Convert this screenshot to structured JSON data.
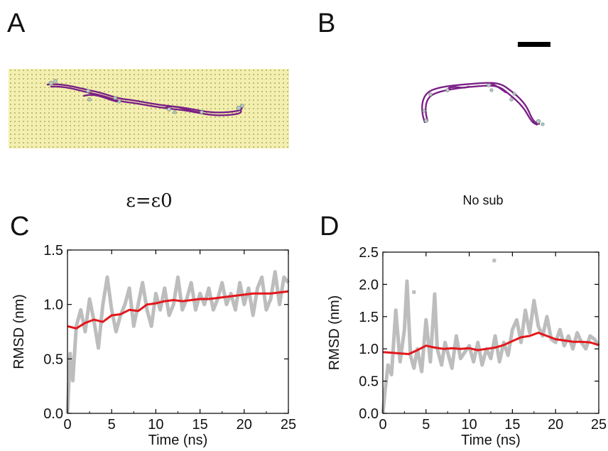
{
  "panels": {
    "a": {
      "letter": "A",
      "caption": "ε=ε0"
    },
    "b": {
      "letter": "B",
      "caption": "No sub"
    },
    "c": {
      "letter": "C"
    },
    "d": {
      "letter": "D"
    }
  },
  "colors": {
    "raw": "#bdbdbd",
    "smooth": "#e3171b",
    "substrate_bg": "#f3efb0",
    "substrate_dot": "#9c9a40",
    "chain": "#7a1f86",
    "chain_end": "#b9c9c4",
    "scalebar": "#000000"
  },
  "chart_data": [
    {
      "panel": "C",
      "type": "line",
      "xlabel": "Time (ns)",
      "ylabel": "RMSD (nm)",
      "xlim": [
        0,
        25
      ],
      "ylim": [
        0,
        1.5
      ],
      "xticks": [
        0,
        5,
        10,
        15,
        20,
        25
      ],
      "yticks": [
        0.0,
        0.5,
        1.0,
        1.5
      ],
      "ytick_labels": [
        "0.0",
        "0.5",
        "1.0",
        "1.5"
      ],
      "series": [
        {
          "role": "raw",
          "x": [
            0.0,
            0.3,
            0.6,
            1.0,
            1.5,
            2.0,
            2.5,
            3.0,
            3.5,
            4.0,
            4.5,
            5.0,
            5.5,
            6.0,
            6.5,
            7.0,
            7.5,
            8.0,
            8.5,
            9.0,
            9.5,
            10.0,
            10.5,
            11.0,
            11.5,
            12.0,
            12.5,
            13.0,
            13.5,
            14.0,
            14.5,
            15.0,
            15.5,
            16.0,
            16.5,
            17.0,
            17.5,
            18.0,
            18.5,
            19.0,
            19.5,
            20.0,
            20.5,
            21.0,
            21.5,
            22.0,
            22.5,
            23.0,
            23.5,
            24.0,
            24.5,
            25.0
          ],
          "y": [
            0.0,
            0.55,
            0.3,
            0.8,
            0.95,
            0.75,
            1.05,
            0.85,
            0.6,
            1.0,
            1.25,
            0.95,
            0.75,
            0.9,
            1.0,
            1.15,
            0.8,
            1.0,
            1.2,
            0.95,
            0.8,
            1.1,
            0.95,
            1.15,
            0.9,
            1.0,
            1.25,
            0.95,
            1.05,
            1.2,
            0.95,
            1.1,
            1.0,
            1.15,
            0.95,
            1.05,
            1.2,
            1.0,
            1.1,
            0.95,
            1.2,
            1.0,
            1.15,
            0.9,
            1.15,
            1.25,
            0.95,
            1.05,
            1.3,
            1.0,
            1.25,
            1.2
          ]
        },
        {
          "role": "smoothed",
          "x": [
            0,
            1,
            2,
            3,
            4,
            5,
            6,
            7,
            8,
            9,
            10,
            11,
            12,
            13,
            14,
            15,
            16,
            17,
            18,
            19,
            20,
            21,
            22,
            23,
            24,
            25
          ],
          "y": [
            0.8,
            0.78,
            0.83,
            0.86,
            0.84,
            0.9,
            0.91,
            0.95,
            0.94,
            1.0,
            1.01,
            1.03,
            1.04,
            1.03,
            1.04,
            1.05,
            1.05,
            1.06,
            1.07,
            1.08,
            1.09,
            1.1,
            1.1,
            1.1,
            1.11,
            1.12
          ]
        }
      ]
    },
    {
      "panel": "D",
      "type": "line",
      "xlabel": "Time (ns)",
      "ylabel": "RMSD (nm)",
      "xlim": [
        0,
        25
      ],
      "ylim": [
        0,
        2.5
      ],
      "xticks": [
        0,
        5,
        10,
        15,
        20,
        25
      ],
      "yticks": [
        0.0,
        0.5,
        1.0,
        1.5,
        2.0,
        2.5
      ],
      "ytick_labels": [
        "0.0",
        "0.5",
        "1.0",
        "1.5",
        "2.0",
        "2.5"
      ],
      "series": [
        {
          "role": "raw",
          "x": [
            0.0,
            0.3,
            0.6,
            1.0,
            1.5,
            2.0,
            2.5,
            2.8,
            3.2,
            3.6,
            4.0,
            4.5,
            5.0,
            5.5,
            6.0,
            6.3,
            6.8,
            7.2,
            7.6,
            8.0,
            8.5,
            9.0,
            9.5,
            10.0,
            10.5,
            11.0,
            11.5,
            12.0,
            12.5,
            13.0,
            13.5,
            14.0,
            14.5,
            15.0,
            15.5,
            16.0,
            16.5,
            17.0,
            17.5,
            18.0,
            18.5,
            19.0,
            19.5,
            20.0,
            20.5,
            21.0,
            21.5,
            22.0,
            22.5,
            23.0,
            23.5,
            24.0,
            24.5,
            25.0
          ],
          "y": [
            0.0,
            0.4,
            0.75,
            0.6,
            1.6,
            0.8,
            1.3,
            2.05,
            0.9,
            0.7,
            1.0,
            0.65,
            1.45,
            0.8,
            1.85,
            1.0,
            0.75,
            1.1,
            0.9,
            0.7,
            1.2,
            0.85,
            0.95,
            1.05,
            0.8,
            1.1,
            0.75,
            1.0,
            0.85,
            1.2,
            0.8,
            1.1,
            0.9,
            1.3,
            1.45,
            1.1,
            1.6,
            1.25,
            1.75,
            1.35,
            1.2,
            1.5,
            1.15,
            1.1,
            1.3,
            1.05,
            1.2,
            1.0,
            1.25,
            1.1,
            1.0,
            1.2,
            1.15,
            1.05
          ]
        },
        {
          "role": "smoothed",
          "x": [
            0,
            1,
            2,
            3,
            4,
            5,
            6,
            7,
            8,
            9,
            10,
            11,
            12,
            13,
            14,
            15,
            16,
            17,
            18,
            19,
            20,
            21,
            22,
            23,
            24,
            25
          ],
          "y": [
            0.95,
            0.94,
            0.93,
            0.92,
            0.98,
            1.05,
            1.02,
            1.0,
            1.01,
            1.0,
            1.01,
            0.98,
            1.0,
            1.02,
            1.06,
            1.12,
            1.18,
            1.2,
            1.25,
            1.2,
            1.15,
            1.13,
            1.11,
            1.11,
            1.1,
            1.06
          ]
        },
        {
          "role": "outlier",
          "x": [
            12.9
          ],
          "y": [
            2.37
          ]
        },
        {
          "role": "outlier",
          "x": [
            3.6
          ],
          "y": [
            1.88
          ]
        }
      ]
    }
  ]
}
